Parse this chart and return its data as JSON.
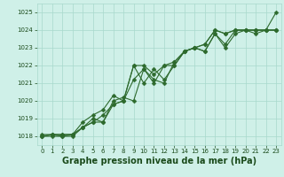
{
  "series": [
    {
      "x": [
        0,
        1,
        2,
        3,
        4,
        5,
        6,
        7,
        8,
        9,
        10,
        11,
        12,
        13,
        14,
        15,
        16,
        17,
        18,
        19,
        20,
        21,
        22,
        23
      ],
      "y": [
        1018.1,
        1018.1,
        1018.1,
        1018.1,
        1018.8,
        1019.2,
        1019.5,
        1020.3,
        1020.0,
        1022.0,
        1022.0,
        1021.5,
        1022.0,
        1022.2,
        1022.8,
        1023.0,
        1023.2,
        1024.0,
        1023.8,
        1024.0,
        1024.0,
        1024.0,
        1024.0,
        1025.0
      ]
    },
    {
      "x": [
        0,
        1,
        2,
        3,
        4,
        5,
        6,
        7,
        8,
        9,
        10,
        11,
        12,
        13,
        14,
        15,
        16,
        17,
        18,
        19,
        20,
        21,
        22,
        23
      ],
      "y": [
        1018.0,
        1018.1,
        1018.1,
        1018.1,
        1018.5,
        1019.0,
        1018.8,
        1019.8,
        1020.0,
        1022.0,
        1021.0,
        1021.8,
        1021.2,
        1022.0,
        1022.8,
        1023.0,
        1023.2,
        1024.0,
        1023.8,
        1024.0,
        1024.0,
        1024.0,
        1024.0,
        1024.0
      ]
    },
    {
      "x": [
        0,
        1,
        2,
        3,
        4,
        5,
        6,
        7,
        8,
        9,
        10,
        11,
        12,
        13,
        14,
        15,
        16,
        17,
        18,
        19,
        20,
        21,
        22,
        23
      ],
      "y": [
        1018.0,
        1018.1,
        1018.0,
        1018.0,
        1018.5,
        1018.8,
        1019.2,
        1019.8,
        1020.0,
        1021.2,
        1021.8,
        1021.2,
        1021.0,
        1022.2,
        1022.8,
        1023.0,
        1022.8,
        1023.8,
        1023.2,
        1024.0,
        1024.0,
        1023.8,
        1024.0,
        1024.0
      ]
    },
    {
      "x": [
        0,
        1,
        2,
        3,
        4,
        5,
        6,
        7,
        8,
        9,
        10,
        11,
        12,
        13,
        14,
        15,
        16,
        17,
        18,
        19,
        20,
        21,
        22,
        23
      ],
      "y": [
        1018.0,
        1018.0,
        1018.0,
        1018.1,
        1018.5,
        1018.8,
        1018.8,
        1020.0,
        1020.2,
        1020.0,
        1021.8,
        1021.0,
        1022.0,
        1022.0,
        1022.8,
        1023.0,
        1022.8,
        1023.8,
        1023.0,
        1023.8,
        1024.0,
        1024.0,
        1024.0,
        1024.0
      ]
    }
  ],
  "line_color": "#2d6a2d",
  "marker_color": "#2d6a2d",
  "bg_color": "#cff0e8",
  "grid_color": "#a8d8cc",
  "xlabel": "Graphe pression niveau de la mer (hPa)",
  "xlabel_color": "#1a4a1a",
  "xlim": [
    -0.5,
    23.5
  ],
  "ylim": [
    1017.5,
    1025.5
  ],
  "yticks": [
    1018,
    1019,
    1020,
    1021,
    1022,
    1023,
    1024,
    1025
  ],
  "xticks": [
    0,
    1,
    2,
    3,
    4,
    5,
    6,
    7,
    8,
    9,
    10,
    11,
    12,
    13,
    14,
    15,
    16,
    17,
    18,
    19,
    20,
    21,
    22,
    23
  ],
  "tick_color": "#1a4a1a",
  "tick_fontsize": 5.0,
  "xlabel_fontsize": 7.0,
  "marker_size": 2.5,
  "line_width": 0.8
}
